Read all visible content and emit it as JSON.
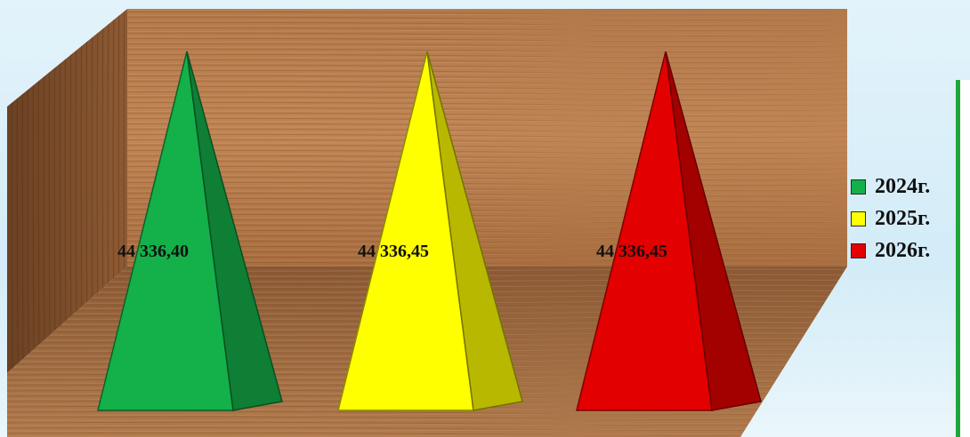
{
  "chart_data": {
    "type": "bar",
    "style": "3d-pyramid",
    "categories": [
      "2024г.",
      "2025г.",
      "2026г."
    ],
    "values": [
      44336.4,
      44336.45,
      44336.45
    ],
    "data_labels": [
      "44 336,40",
      "44 336,45",
      "44 336,45"
    ],
    "series": [
      {
        "name": "2024г.",
        "values": [
          44336.4,
          null,
          null
        ],
        "color": "#14b04a"
      },
      {
        "name": "2025г.",
        "values": [
          null,
          44336.45,
          null
        ],
        "color": "#ffff00"
      },
      {
        "name": "2026г.",
        "values": [
          null,
          null,
          44336.45
        ],
        "color": "#e30000"
      }
    ],
    "title": "",
    "xlabel": "",
    "ylabel": "",
    "grid": false,
    "legend_position": "right",
    "background": "wood-texture"
  },
  "legend": {
    "items": [
      {
        "label": "2024г.",
        "color": "#14b04a"
      },
      {
        "label": "2025г.",
        "color": "#ffff00"
      },
      {
        "label": "2026г.",
        "color": "#e30000"
      }
    ]
  }
}
